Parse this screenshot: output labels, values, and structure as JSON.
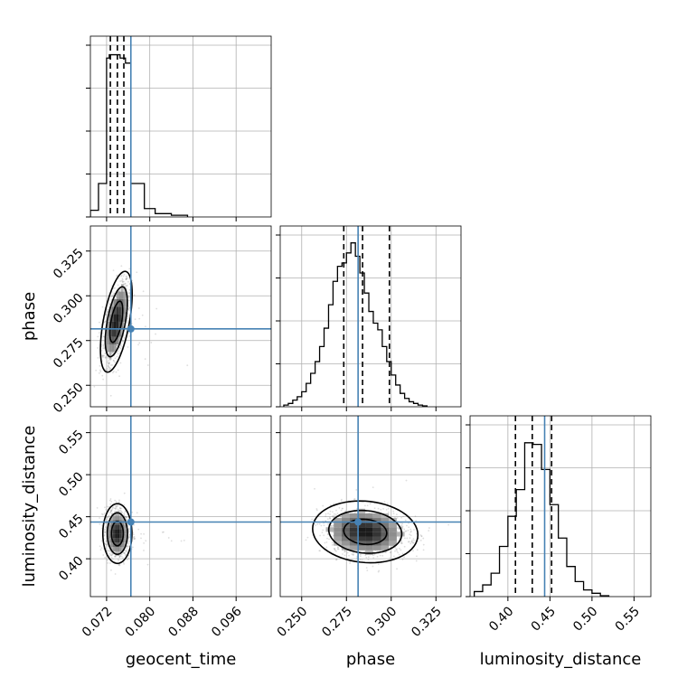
{
  "chart_data": {
    "type": "corner",
    "parameters": [
      "geocent_time",
      "phase",
      "luminosity_distance"
    ],
    "xlabels": [
      "geocent_time",
      "phase",
      "luminosity_distance"
    ],
    "ylabels": [
      "",
      "phase",
      "luminosity_distance"
    ],
    "grid": true,
    "truths": [
      0.0765,
      0.2815,
      0.4437
    ],
    "truth_color": "#4682b4",
    "ranges": [
      [
        0.069,
        0.1025
      ],
      [
        0.238,
        0.339
      ],
      [
        0.355,
        0.57
      ]
    ],
    "ticks": {
      "geocent_time": [
        0.072,
        0.08,
        0.088,
        0.096
      ],
      "phase": [
        0.25,
        0.275,
        0.3,
        0.325
      ],
      "luminosity_distance": [
        0.4,
        0.45,
        0.5,
        0.55
      ]
    },
    "tick_labels": {
      "geocent_time": [
        "0.072",
        "0.080",
        "0.088",
        "0.096"
      ],
      "phase": [
        "0.250",
        "0.275",
        "0.300",
        "0.325"
      ],
      "luminosity_distance": [
        "0.40",
        "0.45",
        "0.50",
        "0.55"
      ]
    },
    "quantiles": {
      "geocent_time": [
        0.0727,
        0.074,
        0.0752
      ],
      "phase": [
        0.2735,
        0.284,
        0.299
      ],
      "luminosity_distance": [
        0.409,
        0.429,
        0.452
      ]
    },
    "histograms": {
      "geocent_time": {
        "edges": [
          0.069,
          0.0705,
          0.072,
          0.0725,
          0.0745,
          0.0755,
          0.0765,
          0.079,
          0.081,
          0.084,
          0.087
        ],
        "counts": [
          0.04,
          0.2,
          0.95,
          0.97,
          0.95,
          0.92,
          0.2,
          0.05,
          0.02,
          0.01
        ]
      },
      "phase": {
        "edges": [
          0.24,
          0.2425,
          0.245,
          0.2475,
          0.25,
          0.2525,
          0.255,
          0.2575,
          0.26,
          0.2625,
          0.265,
          0.2675,
          0.27,
          0.2725,
          0.275,
          0.2775,
          0.28,
          0.2825,
          0.285,
          0.2875,
          0.29,
          0.2925,
          0.295,
          0.2975,
          0.3,
          0.3025,
          0.305,
          0.3075,
          0.31,
          0.3125,
          0.315,
          0.3175,
          0.32
        ],
        "counts": [
          0.01,
          0.02,
          0.04,
          0.06,
          0.09,
          0.14,
          0.2,
          0.27,
          0.36,
          0.47,
          0.61,
          0.75,
          0.84,
          0.86,
          0.92,
          0.98,
          0.9,
          0.8,
          0.68,
          0.57,
          0.5,
          0.46,
          0.36,
          0.27,
          0.19,
          0.13,
          0.08,
          0.05,
          0.03,
          0.02,
          0.01,
          0.005
        ]
      },
      "luminosity_distance": {
        "edges": [
          0.36,
          0.37,
          0.38,
          0.39,
          0.4,
          0.41,
          0.42,
          0.43,
          0.44,
          0.45,
          0.46,
          0.47,
          0.48,
          0.49,
          0.5,
          0.51,
          0.52
        ],
        "counts": [
          0.03,
          0.07,
          0.14,
          0.3,
          0.48,
          0.64,
          0.92,
          0.91,
          0.76,
          0.55,
          0.35,
          0.18,
          0.09,
          0.04,
          0.02,
          0.005
        ]
      }
    },
    "contours": [
      {
        "x": "geocent_time",
        "y": "phase",
        "center": [
          0.0738,
          0.2855
        ],
        "sd": [
          0.0012,
          0.0115
        ],
        "rho": 0.55
      },
      {
        "x": "geocent_time",
        "y": "luminosity_distance",
        "center": [
          0.074,
          0.43
        ],
        "sd": [
          0.0011,
          0.0145
        ],
        "rho": 0.0
      },
      {
        "x": "phase",
        "y": "luminosity_distance",
        "center": [
          0.2855,
          0.432
        ],
        "sd": [
          0.012,
          0.015
        ],
        "rho": -0.1
      }
    ]
  }
}
